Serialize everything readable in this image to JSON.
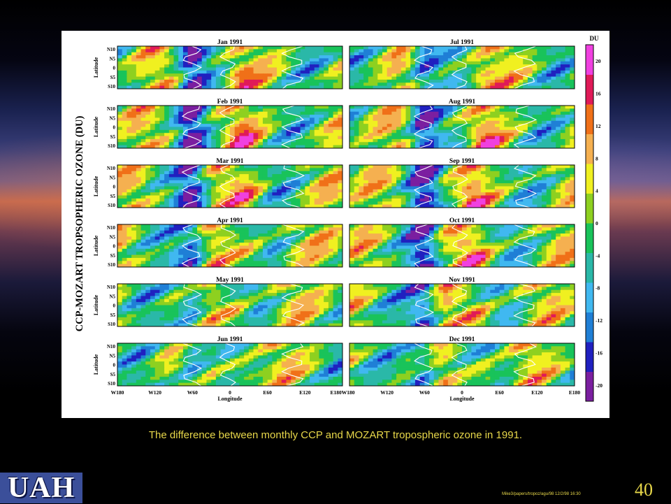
{
  "slide": {
    "caption": "The difference between monthly CCP and MOZART tropospheric ozone in 1991.",
    "logo_text": "UAH",
    "path_note": "Mike3/papers/tropoz/agu/98   12/2/98 16:30",
    "page_number": "40"
  },
  "colors": {
    "scale": [
      "#7b1fa0",
      "#2020c0",
      "#1f7fd6",
      "#40b8f0",
      "#2ab8a8",
      "#19c35a",
      "#8ed020",
      "#f0f020",
      "#f5b050",
      "#f07018",
      "#e01a58",
      "#f040e0"
    ]
  },
  "chart_data": {
    "type": "heatmap",
    "title": "CCP-MOZART TROPSOPHERIC OZONE (DU)",
    "xlabel": "Longitude",
    "ylabel": "Latitude",
    "xticks": [
      "W180",
      "W120",
      "W60",
      "0",
      "E60",
      "E120",
      "E180"
    ],
    "yticks": [
      "N10",
      "N5",
      "0",
      "S5",
      "S10"
    ],
    "xlim": [
      -180,
      180
    ],
    "ylim": [
      -10,
      10
    ],
    "panels_left": [
      "Jan 1991",
      "Feb 1991",
      "Mar 1991",
      "Apr 1991",
      "May 1991",
      "Jun 1991"
    ],
    "panels_right": [
      "Jul 1991",
      "Aug 1991",
      "Sep 1991",
      "Oct 1991",
      "Nov 1991",
      "Dec 1991"
    ],
    "colorbar": {
      "unit": "DU",
      "ticks": [
        20,
        16,
        12,
        8,
        4,
        0,
        -4,
        -8,
        -12,
        -16,
        -20
      ],
      "range": [
        -22,
        22
      ]
    }
  }
}
